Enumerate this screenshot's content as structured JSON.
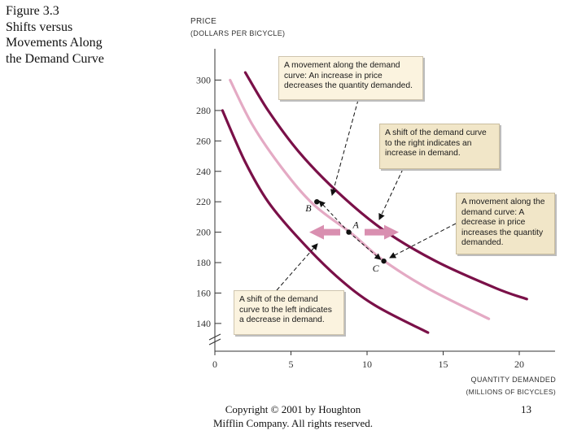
{
  "slide": {
    "title_lines": [
      "Figure 3.3",
      "Shifts versus",
      "Movements Along",
      "the Demand Curve"
    ],
    "copyright_lines": [
      "Copyright © 2001 by Houghton",
      "Mifflin Company. All rights reserved."
    ],
    "page_number": "13"
  },
  "chart_data": {
    "type": "line",
    "ylabel_lines": [
      "PRICE",
      "(DOLLARS PER BICYCLE)"
    ],
    "xlabel_lines": [
      "QUANTITY DEMANDED",
      "(MILLIONS OF BICYCLES)"
    ],
    "xlim": [
      0,
      22
    ],
    "ylim": [
      140,
      310
    ],
    "x_ticks": [
      0,
      5,
      10,
      15,
      20
    ],
    "y_ticks": [
      300,
      280,
      260,
      240,
      220,
      200,
      180,
      160,
      140
    ],
    "axis_break": true,
    "colors": {
      "shifted_curves": "#7a1048",
      "original_curve": "#e4aac4",
      "arrow": "#d98fb0"
    },
    "series": [
      {
        "name": "Demand curve shifted right",
        "color": "#7a1048",
        "x": [
          2.0,
          3.5,
          5.5,
          8.0,
          11.0,
          14.5,
          18.5,
          20.5
        ],
        "y": [
          305,
          280,
          253,
          227,
          202,
          181,
          163,
          156
        ]
      },
      {
        "name": "Original demand curve",
        "color": "#e4aac4",
        "x": [
          1.0,
          2.5,
          4.5,
          6.5,
          9.0,
          11.0,
          14.0,
          18.0
        ],
        "y": [
          300,
          270,
          241,
          218,
          199,
          182,
          163,
          143
        ]
      },
      {
        "name": "Demand curve shifted left",
        "color": "#7a1048",
        "x": [
          0.5,
          2.0,
          3.5,
          5.5,
          8.0,
          10.5,
          14.0
        ],
        "y": [
          280,
          246,
          220,
          196,
          171,
          152,
          134
        ]
      }
    ],
    "points": [
      {
        "label": "A",
        "x": 8.8,
        "y": 200
      },
      {
        "label": "B",
        "x": 6.7,
        "y": 220
      },
      {
        "label": "C",
        "x": 11.1,
        "y": 181
      }
    ],
    "annotations": [
      {
        "id": "move-up",
        "text": "A movement along the demand curve: An increase in price decreases the quantity demanded."
      },
      {
        "id": "shift-right",
        "text": "A shift of the demand curve to the right indicates an increase in demand."
      },
      {
        "id": "move-down",
        "text": "A movement along the demand curve: A decrease in price increases the quantity demanded."
      },
      {
        "id": "shift-left",
        "text": "A shift of the demand curve to the left indicates a decrease in demand."
      }
    ]
  }
}
